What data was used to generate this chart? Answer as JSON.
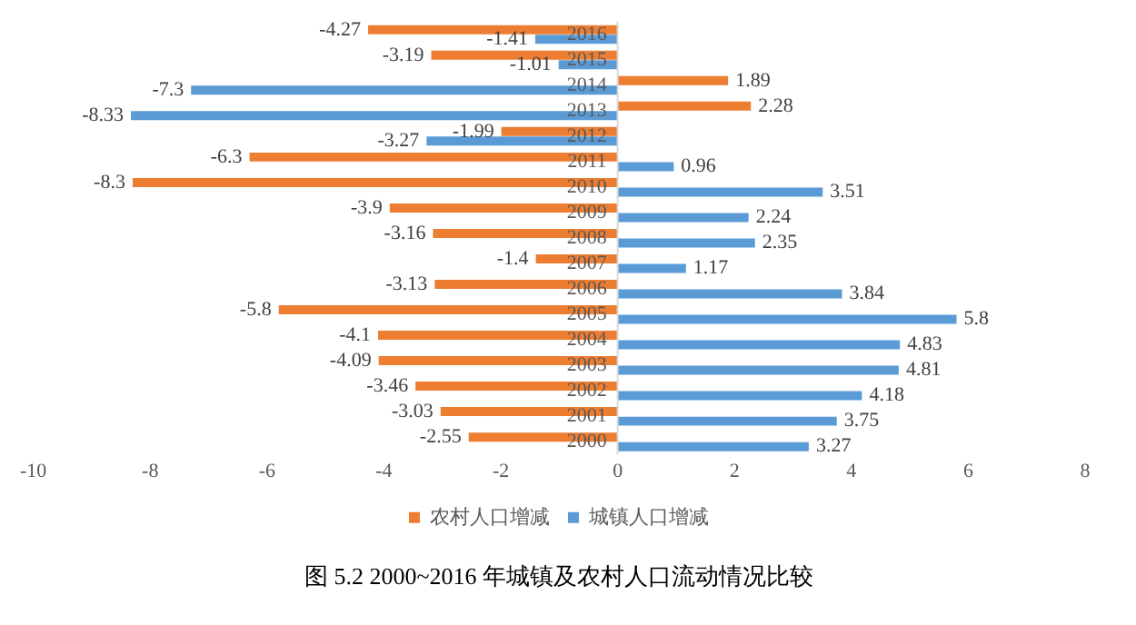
{
  "chart_data": {
    "type": "bar",
    "orientation": "horizontal",
    "title": "图 5.2 2000~2016 年城镇及农村人口流动情况比较",
    "categories": [
      "2016",
      "2015",
      "2014",
      "2013",
      "2012",
      "2011",
      "2010",
      "2009",
      "2008",
      "2007",
      "2006",
      "2005",
      "2004",
      "2003",
      "2002",
      "2001",
      "2000"
    ],
    "series": [
      {
        "name": "农村人口增减",
        "color": "#ed7d31",
        "values": [
          -4.27,
          -3.19,
          1.89,
          2.28,
          -1.99,
          -6.3,
          -8.3,
          -3.9,
          -3.16,
          -1.4,
          -3.13,
          -5.8,
          -4.1,
          -4.09,
          -3.46,
          -3.03,
          -2.55
        ]
      },
      {
        "name": "城镇人口增减",
        "color": "#5b9bd5",
        "values": [
          -1.41,
          -1.01,
          -7.3,
          -8.33,
          -3.27,
          0.96,
          3.51,
          2.24,
          2.35,
          1.17,
          3.84,
          5.8,
          4.83,
          4.81,
          4.18,
          3.75,
          3.27
        ]
      }
    ],
    "xlim": [
      -10,
      8
    ],
    "xticks": [
      -10,
      -8,
      -6,
      -4,
      -2,
      0,
      2,
      4,
      6,
      8
    ],
    "grid": false,
    "legend": "bottom",
    "data_labels": true
  }
}
